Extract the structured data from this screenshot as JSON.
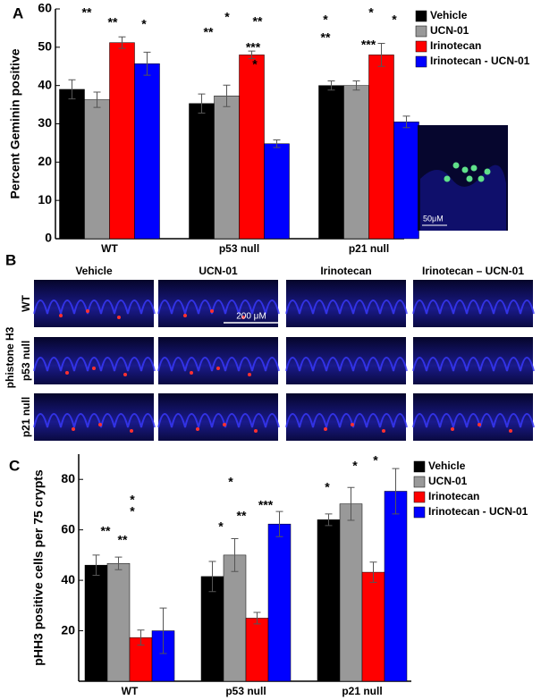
{
  "chart_data": [
    {
      "type": "bar",
      "label": "A",
      "ylabel": "Percent Geminin positive",
      "categories": [
        "WT",
        "p53 null",
        "p21 null"
      ],
      "series": [
        {
          "name": "Vehicle",
          "color": "#000000",
          "values": [
            39,
            35.3,
            40
          ],
          "errors": [
            2.5,
            2.5,
            1.2
          ]
        },
        {
          "name": "UCN-01",
          "color": "#999999",
          "values": [
            36.3,
            37.3,
            40
          ],
          "errors": [
            2,
            2.8,
            1.2
          ]
        },
        {
          "name": "Irinotecan",
          "color": "#ff0000",
          "values": [
            51.2,
            48,
            48
          ],
          "errors": [
            1.5,
            1,
            3
          ]
        },
        {
          "name": "Irinotecan - UCN-01",
          "color": "#0000ff",
          "values": [
            45.7,
            24.8,
            30.5
          ],
          "errors": [
            3,
            1,
            1.5
          ]
        }
      ],
      "ylim": [
        0,
        60
      ],
      "yticks": [
        0,
        10,
        20,
        30,
        40,
        50,
        60
      ],
      "legend": "right",
      "annotations": [
        "**",
        "**",
        "*",
        "*",
        "**",
        "**",
        "***",
        "*",
        "*",
        "*",
        "*",
        "**",
        "***"
      ],
      "inset_scale": "50μM"
    },
    {
      "type": "bar",
      "label": "C",
      "ylabel": "pHH3 positive cells per 75 crypts",
      "categories": [
        "WT",
        "p53 null",
        "p21 null"
      ],
      "series": [
        {
          "name": "Vehicle",
          "color": "#000000",
          "values": [
            46,
            41.5,
            64
          ],
          "errors": [
            4,
            6,
            2.3
          ]
        },
        {
          "name": "UCN-01",
          "color": "#999999",
          "values": [
            46.7,
            50,
            70.3
          ],
          "errors": [
            2.5,
            6.5,
            6.5
          ]
        },
        {
          "name": "Irinotecan",
          "color": "#ff0000",
          "values": [
            17.3,
            25,
            43.2
          ],
          "errors": [
            3,
            2.3,
            4
          ]
        },
        {
          "name": "Irinotecan - UCN-01",
          "color": "#0000ff",
          "values": [
            20,
            62.3,
            75.3
          ],
          "errors": [
            9,
            5,
            9
          ]
        }
      ],
      "ylim": [
        0,
        90
      ],
      "yticks": [
        20,
        40,
        60,
        80
      ],
      "legend": "right",
      "annotations": [
        "*",
        "*",
        "**",
        "**",
        "*",
        "*",
        "**",
        "***",
        "*",
        "*",
        "*"
      ]
    }
  ],
  "panel_b": {
    "label": "B",
    "columns": [
      "Vehicle",
      "UCN-01",
      "Irinotecan",
      "Irinotecan – UCN-01"
    ],
    "rows": [
      "WT",
      "p53 null",
      "p21 null"
    ],
    "ylabel": "phistone H3",
    "scale": "200 μM"
  }
}
